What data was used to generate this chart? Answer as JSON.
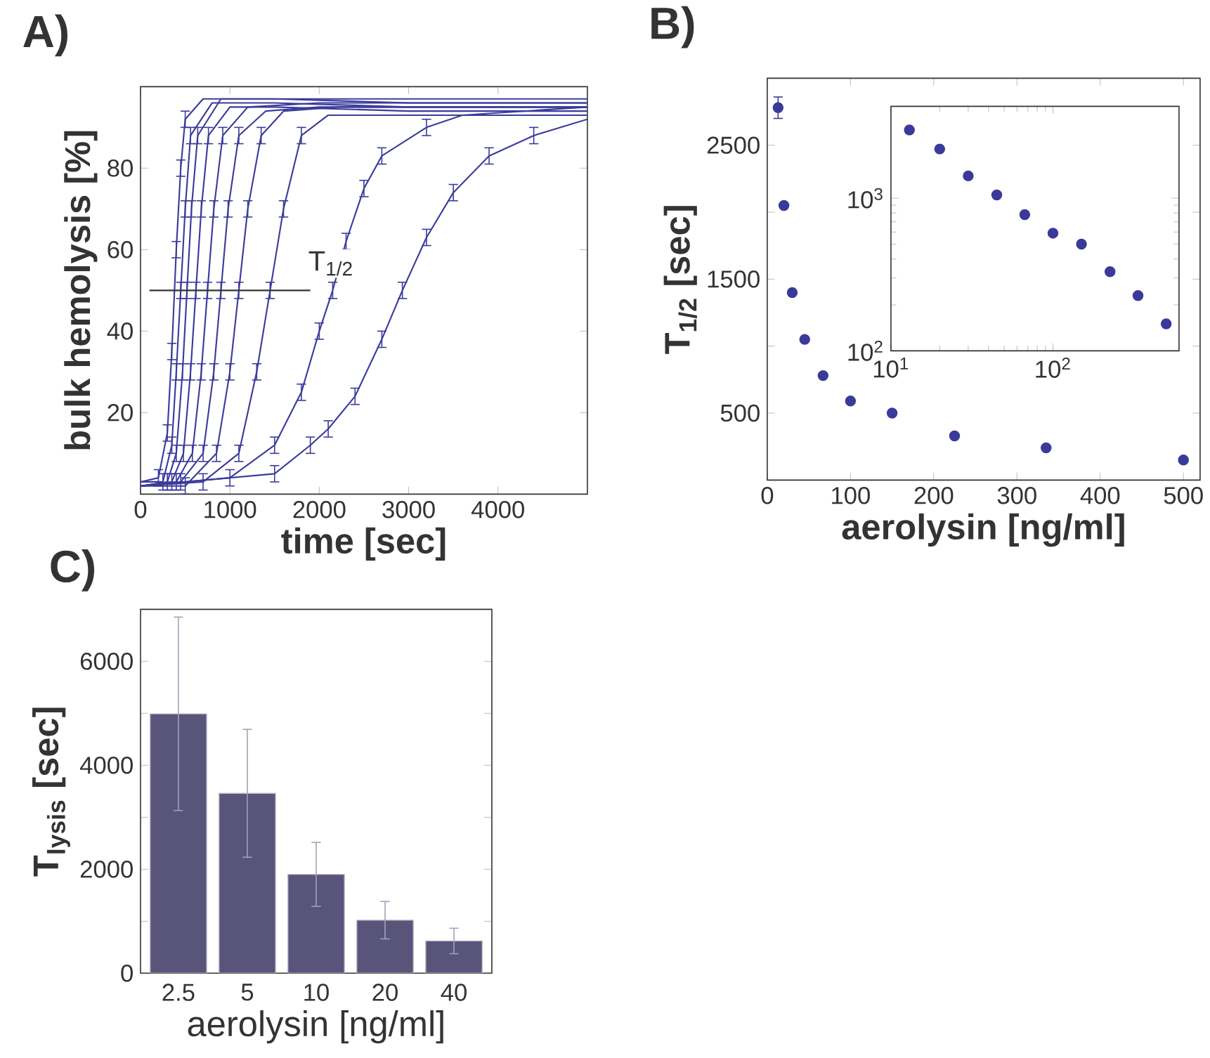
{
  "chart_data": [
    {
      "type": "line",
      "title": "A)",
      "xlabel": "time [sec]",
      "ylabel": "bulk hemolysis [%]",
      "xlim": [
        0,
        5000
      ],
      "ylim": [
        0,
        100
      ],
      "xticks": [
        0,
        1000,
        2000,
        3000,
        4000
      ],
      "yticks": [
        20,
        40,
        60,
        80
      ],
      "marker": "none",
      "annotations": [
        "T$_{1/2}$"
      ],
      "series": [
        {
          "color": "#3b3b9c",
          "x": [
            0,
            200,
            300,
            350,
            400,
            450,
            500,
            700,
            1500,
            3000,
            5000
          ],
          "values": [
            3,
            4,
            15,
            35,
            60,
            80,
            92,
            97,
            97,
            96,
            96
          ],
          "errors": [
            null,
            2,
            2,
            2,
            2,
            2,
            2,
            null,
            null,
            null,
            null
          ]
        },
        {
          "color": "#3b3b9c",
          "x": [
            0,
            250,
            350,
            400,
            450,
            500,
            560,
            800,
            1500,
            3000,
            5000
          ],
          "values": [
            3,
            3,
            12,
            30,
            50,
            70,
            88,
            96,
            96,
            95,
            95
          ],
          "errors": [
            null,
            2,
            2,
            2,
            2,
            2,
            2,
            null,
            null,
            null,
            null
          ]
        },
        {
          "color": "#3b3b9c",
          "x": [
            0,
            300,
            400,
            470,
            520,
            570,
            640,
            900,
            1500,
            3000,
            5000
          ],
          "values": [
            2,
            3,
            10,
            30,
            50,
            70,
            88,
            97,
            97,
            97,
            97
          ],
          "errors": [
            null,
            2,
            2,
            2,
            2,
            2,
            2,
            null,
            null,
            null,
            null
          ]
        },
        {
          "color": "#3b3b9c",
          "x": [
            0,
            350,
            480,
            560,
            620,
            680,
            760,
            1000,
            1500,
            3000,
            5000
          ],
          "values": [
            2,
            3,
            10,
            30,
            50,
            70,
            88,
            95,
            95,
            94,
            94
          ],
          "errors": [
            null,
            2,
            2,
            2,
            2,
            2,
            2,
            null,
            null,
            null,
            null
          ]
        },
        {
          "color": "#3b3b9c",
          "x": [
            0,
            400,
            580,
            680,
            750,
            820,
            920,
            1200,
            2000,
            3000,
            5000
          ],
          "values": [
            2,
            3,
            10,
            30,
            50,
            70,
            88,
            95,
            96,
            96,
            96
          ],
          "errors": [
            null,
            2,
            2,
            2,
            2,
            2,
            2,
            null,
            null,
            null,
            null
          ]
        },
        {
          "color": "#3b3b9c",
          "x": [
            0,
            450,
            700,
            820,
            900,
            980,
            1100,
            1400,
            2000,
            3000,
            5000
          ],
          "values": [
            2,
            3,
            10,
            30,
            50,
            70,
            88,
            94,
            95,
            95,
            95
          ],
          "errors": [
            null,
            2,
            2,
            2,
            2,
            2,
            2,
            null,
            null,
            null,
            null
          ]
        },
        {
          "color": "#3b3b9c",
          "x": [
            0,
            500,
            850,
            1000,
            1100,
            1200,
            1350,
            1600,
            2200,
            3000,
            5000
          ],
          "values": [
            2,
            2,
            10,
            30,
            50,
            70,
            88,
            94,
            95,
            95,
            95
          ],
          "errors": [
            null,
            2,
            2,
            2,
            2,
            2,
            2,
            null,
            null,
            null,
            null
          ]
        },
        {
          "color": "#3b3b9c",
          "x": [
            0,
            700,
            1100,
            1300,
            1450,
            1600,
            1800,
            2100,
            2600,
            3500,
            5000
          ],
          "values": [
            2,
            3,
            10,
            30,
            50,
            70,
            88,
            93,
            93,
            93,
            93
          ],
          "errors": [
            null,
            2,
            2,
            2,
            2,
            2,
            2,
            null,
            null,
            null,
            null
          ]
        },
        {
          "color": "#3b3b9c",
          "x": [
            0,
            1000,
            1500,
            1800,
            2000,
            2150,
            2300,
            2500,
            2700,
            3200,
            3600,
            5000
          ],
          "values": [
            2,
            4,
            12,
            25,
            40,
            50,
            62,
            75,
            83,
            90,
            93,
            95
          ],
          "errors": [
            null,
            2,
            2,
            2,
            2,
            2,
            2,
            2,
            2,
            2,
            null,
            null
          ]
        },
        {
          "color": "#3b3b9c",
          "x": [
            0,
            1500,
            1900,
            2100,
            2400,
            2700,
            2930,
            3200,
            3500,
            3900,
            4400,
            5000
          ],
          "values": [
            2,
            5,
            12,
            16,
            24,
            38,
            50,
            63,
            74,
            83,
            88,
            92
          ],
          "errors": [
            null,
            2,
            2,
            2,
            2,
            2,
            2,
            2,
            2,
            2,
            2,
            null
          ]
        },
        {
          "color": "#333333",
          "x": [
            100,
            1900
          ],
          "values": [
            50,
            50
          ]
        }
      ]
    },
    {
      "type": "scatter",
      "title": "B)",
      "xlabel": "aerolysin [ng/ml]",
      "ylabel": "T$_{1/2}$ [sec]",
      "xlim": [
        0,
        520
      ],
      "ylim": [
        0,
        3000
      ],
      "xticks": [
        0,
        100,
        200,
        300,
        400,
        500
      ],
      "yticks": [
        500,
        {
          "value": 1000,
          "label": null
        },
        1500,
        {
          "value": 2000,
          "label": null
        },
        2500
      ],
      "marker": "circle",
      "series": [
        {
          "color": "#3a3a9a",
          "x": [
            13,
            20,
            30,
            45,
            67,
            100,
            150,
            225,
            335,
            500
          ],
          "values": [
            2780,
            2050,
            1400,
            1050,
            780,
            590,
            500,
            330,
            240,
            150
          ],
          "errors": [
            80,
            null,
            null,
            null,
            null,
            null,
            null,
            null,
            null,
            null
          ]
        }
      ]
    },
    {
      "type": "scatter",
      "log": "xy",
      "xlim": [
        10,
        600
      ],
      "ylim": [
        100,
        4000
      ],
      "xticks": [
        {
          "value": 10,
          "label": "10$^{1}$"
        },
        {
          "value": 100,
          "label": "10$^{2}$"
        }
      ],
      "yticks": [
        {
          "value": 100,
          "label": "10$^{2}$"
        },
        {
          "value": 1000,
          "label": "10$^{3}$"
        }
      ],
      "marker": "circle",
      "series": [
        {
          "color": "#3a3a9a",
          "x": [
            13,
            20,
            30,
            45,
            67,
            100,
            150,
            225,
            335,
            500
          ],
          "values": [
            2800,
            2100,
            1400,
            1050,
            780,
            590,
            500,
            330,
            230,
            150
          ]
        }
      ]
    },
    {
      "type": "bar",
      "title": "C)",
      "xlabel": "aerolysin [ng/ml]",
      "ylabel": "T$_{lysis}$ [sec]",
      "ylim": [
        0,
        7000
      ],
      "yticks": [
        0,
        {
          "value": 1000,
          "label": null
        },
        2000,
        {
          "value": 3000,
          "label": null
        },
        4000,
        {
          "value": 5000,
          "label": null
        },
        6000,
        {
          "value": 7000,
          "label": null
        }
      ],
      "categories": [
        "2.5",
        "5",
        "10",
        "20",
        "40"
      ],
      "color": "#59547a",
      "values": [
        4990,
        3460,
        1900,
        1020,
        620
      ],
      "errors": [
        1860,
        1230,
        615,
        360,
        245
      ]
    }
  ]
}
